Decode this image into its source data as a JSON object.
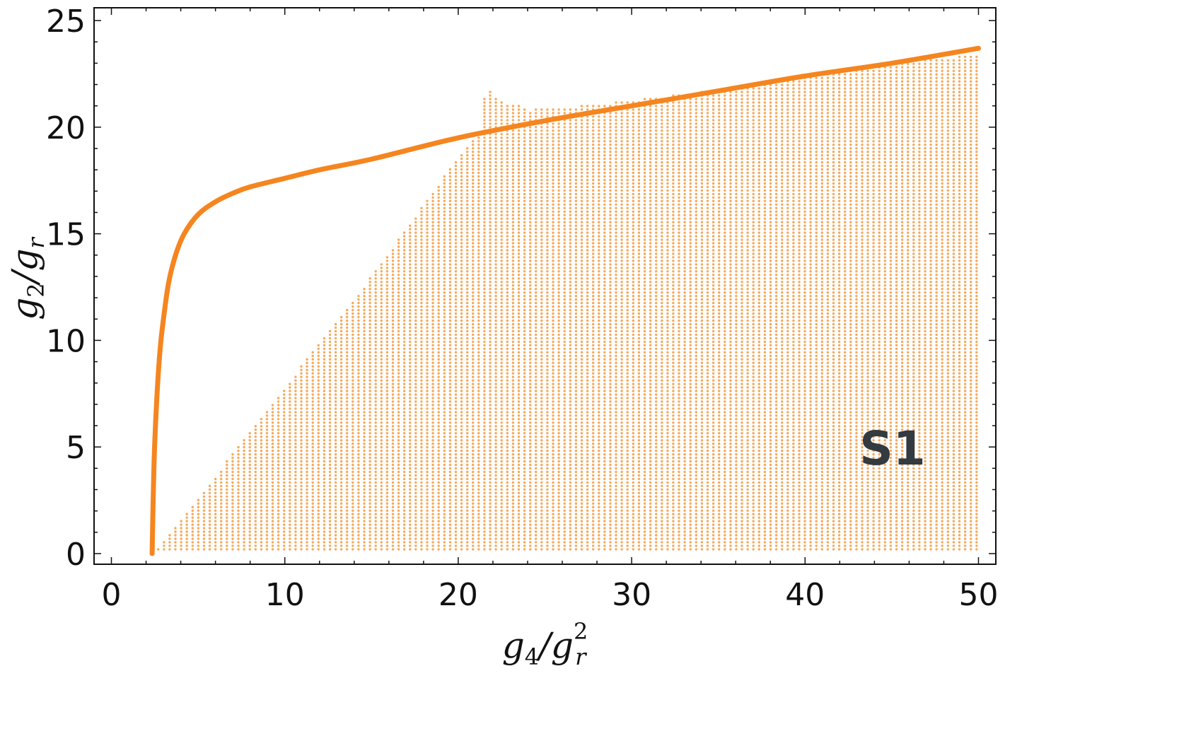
{
  "chart_data": {
    "type": "scatter",
    "xlim": [
      -1,
      51
    ],
    "ylim": [
      -0.5,
      25.6
    ],
    "xticks": [
      0,
      10,
      20,
      30,
      40,
      50
    ],
    "yticks": [
      0,
      5,
      10,
      15,
      20,
      25
    ],
    "xlabel": {
      "base": "g",
      "sub": "4",
      "slash": "/",
      "base2": "g",
      "sup2": "2",
      "sub2": "r"
    },
    "ylabel": {
      "base": "g",
      "sub": "2",
      "slash": "/",
      "base2": "g",
      "sub2": "r"
    },
    "annotation": "S1",
    "annotation_position": "bottom-right",
    "grid": false,
    "colors": {
      "curve": "#f5851f",
      "points": "#f5a95c",
      "annotation": "#333a40",
      "axes": "#111111"
    },
    "series": [
      {
        "kind": "line",
        "points": [
          [
            2.35,
            0
          ],
          [
            2.45,
            4
          ],
          [
            2.6,
            7
          ],
          [
            2.8,
            9.5
          ],
          [
            3,
            11
          ],
          [
            3.3,
            12.7
          ],
          [
            3.7,
            14
          ],
          [
            4.2,
            15
          ],
          [
            5,
            15.9
          ],
          [
            6,
            16.5
          ],
          [
            7,
            16.9
          ],
          [
            8,
            17.2
          ],
          [
            10,
            17.6
          ],
          [
            12,
            18
          ],
          [
            15,
            18.5
          ],
          [
            20,
            19.5
          ],
          [
            25,
            20.3
          ],
          [
            30,
            21
          ],
          [
            35,
            21.7
          ],
          [
            40,
            22.4
          ],
          [
            45,
            23
          ],
          [
            50,
            23.7
          ]
        ]
      },
      {
        "kind": "points-region",
        "step": 0.33,
        "y_min": 0.2,
        "x_max": 50,
        "boundary": [
          [
            2.7,
            0.2
          ],
          [
            5,
            2.6
          ],
          [
            10,
            7.8
          ],
          [
            15,
            13
          ],
          [
            19,
            17.5
          ],
          [
            21.3,
            19.9
          ],
          [
            21.5,
            21.4
          ],
          [
            22,
            22
          ],
          [
            22.2,
            21.3
          ],
          [
            23.5,
            21
          ],
          [
            24,
            20.8
          ],
          [
            28,
            21.05
          ],
          [
            35,
            21.75
          ],
          [
            40,
            22.4
          ],
          [
            45,
            23
          ],
          [
            50,
            23.4
          ]
        ]
      }
    ]
  }
}
